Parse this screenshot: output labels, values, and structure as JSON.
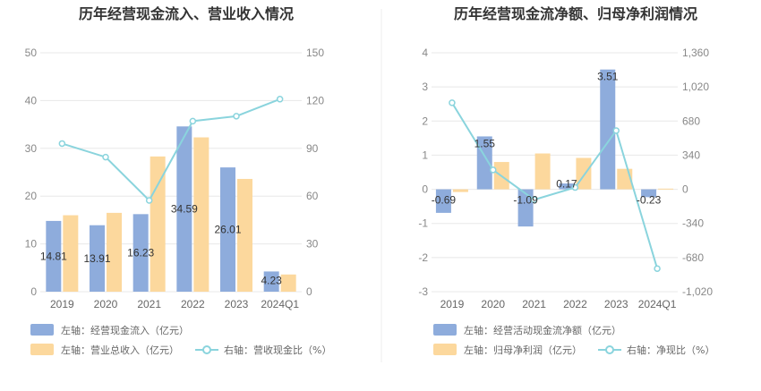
{
  "chart_data": [
    {
      "type": "bar",
      "title": "历年经营现金流入、营业收入情况",
      "categories": [
        "2019",
        "2020",
        "2021",
        "2022",
        "2023",
        "2024Q1"
      ],
      "left_axis": {
        "min": 0,
        "max": 50,
        "ticks": [
          "0",
          "10",
          "20",
          "30",
          "40",
          "50"
        ]
      },
      "right_axis": {
        "min": 0,
        "max": 150,
        "ticks": [
          "0",
          "30",
          "60",
          "90",
          "120",
          "150"
        ]
      },
      "series": [
        {
          "name": "左轴：经营现金流入（亿元）",
          "kind": "bar",
          "axis": "left",
          "color": "#8eacdc",
          "values": [
            14.81,
            13.91,
            16.23,
            34.59,
            26.01,
            4.23
          ],
          "labels": [
            "14.81",
            "13.91",
            "16.23",
            "34.59",
            "26.01",
            "4.23"
          ]
        },
        {
          "name": "左轴：营业总收入（亿元）",
          "kind": "bar",
          "axis": "left",
          "color": "#fcd89d",
          "values": [
            16.0,
            16.5,
            28.3,
            32.3,
            23.6,
            3.6
          ]
        },
        {
          "name": "右轴：营收现金比（%）",
          "kind": "line",
          "axis": "right",
          "color": "#8ad4dd",
          "values": [
            93.0,
            84.5,
            57.3,
            107.1,
            110.2,
            120.9
          ]
        }
      ]
    },
    {
      "type": "bar",
      "title": "历年经营现金流净额、归母净利润情况",
      "categories": [
        "2019",
        "2020",
        "2021",
        "2022",
        "2023",
        "2024Q1"
      ],
      "left_axis": {
        "min": -3,
        "max": 4,
        "ticks": [
          "-3",
          "-2",
          "-1",
          "0",
          "1",
          "2",
          "3",
          "4"
        ]
      },
      "right_axis": {
        "min": -1020,
        "max": 1360,
        "ticks": [
          "-1,020",
          "-680",
          "-340",
          "0",
          "340",
          "680",
          "1,020",
          "1,360"
        ]
      },
      "series": [
        {
          "name": "左轴：经营活动现金流净额（亿元）",
          "kind": "bar",
          "axis": "left",
          "color": "#8eacdc",
          "values": [
            -0.69,
            1.55,
            -1.09,
            0.17,
            3.51,
            -0.23
          ],
          "labels": [
            "-0.69",
            "1.55",
            "-1.09",
            "0.17",
            "3.51",
            "-0.23"
          ]
        },
        {
          "name": "左轴：归母净利润（亿元）",
          "kind": "bar",
          "axis": "left",
          "color": "#fcd89d",
          "values": [
            -0.08,
            0.8,
            1.05,
            0.92,
            0.6,
            0.02
          ]
        },
        {
          "name": "右轴：净现比（%）",
          "kind": "line",
          "axis": "right",
          "color": "#8ad4dd",
          "values": [
            862,
            193,
            -104,
            18,
            585,
            -790
          ]
        }
      ]
    }
  ]
}
